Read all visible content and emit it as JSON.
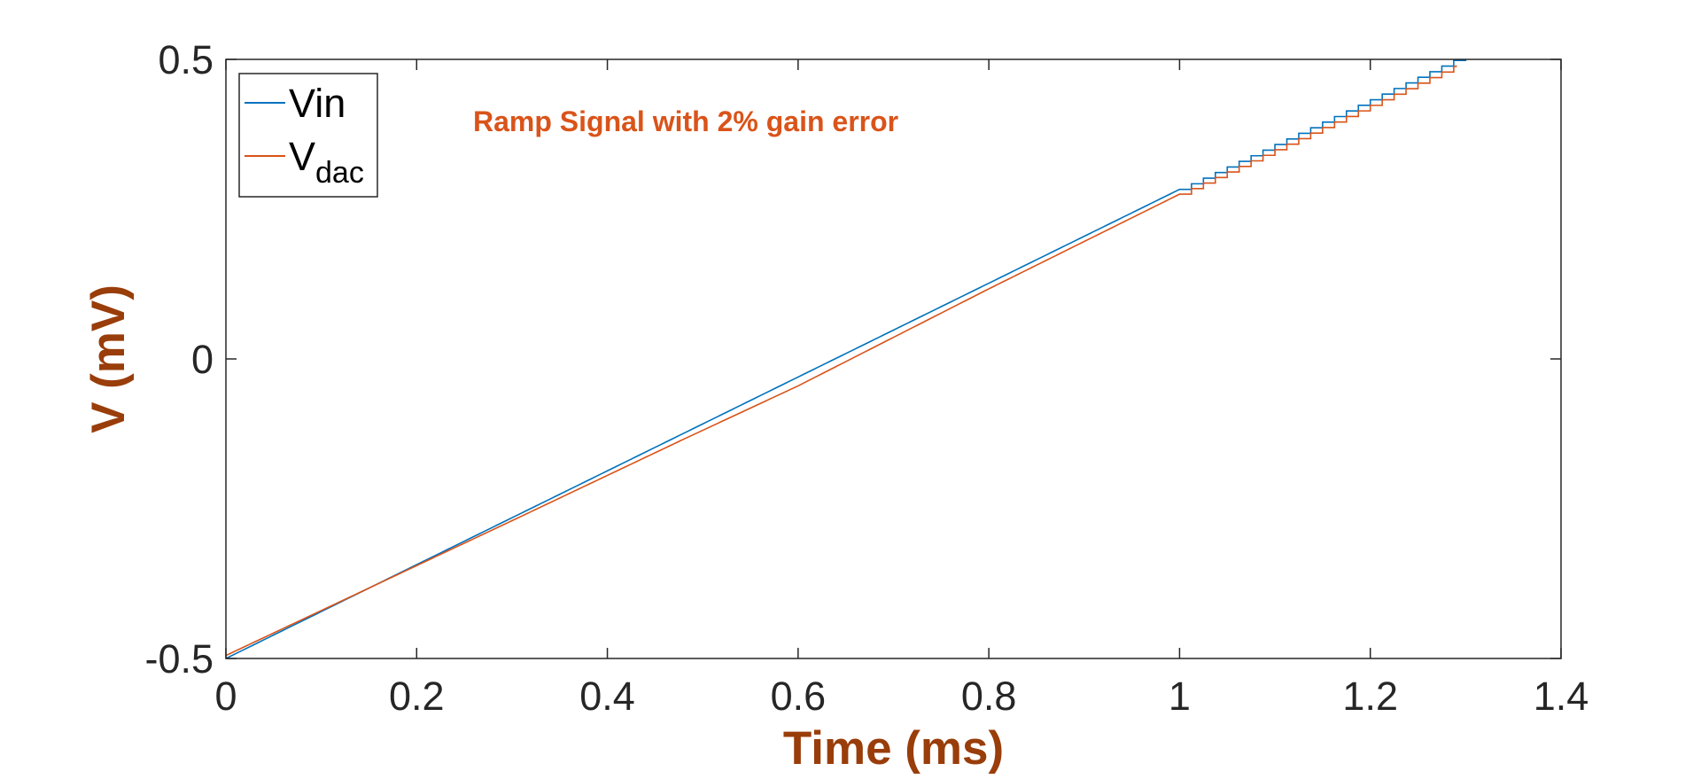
{
  "chart_data": {
    "type": "line",
    "title": "",
    "xlabel": "Time (ms)",
    "ylabel": "V (mV)",
    "xlim": [
      0,
      1.4
    ],
    "ylim": [
      -0.5,
      0.5
    ],
    "xticks": [
      0,
      0.2,
      0.4,
      0.6,
      0.8,
      1,
      1.2,
      1.4
    ],
    "xtick_labels": [
      "0",
      "0.2",
      "0.4",
      "0.6",
      "0.8",
      "1",
      "1.2",
      "1.4"
    ],
    "yticks": [
      -0.5,
      0,
      0.5
    ],
    "ytick_labels": [
      "-0.5",
      "0",
      "0.5"
    ],
    "grid": false,
    "legend_position": "top-left",
    "annotation": "Ramp Signal with 2% gain error",
    "colors": {
      "axis_label": "#993d0a",
      "annotation": "#d9541a",
      "axes": "#262626"
    },
    "series": [
      {
        "name": "Vin",
        "legend_main": "Vin",
        "legend_sub": "",
        "color": "#0072bd",
        "x": [
          0,
          1.0,
          1.29,
          1.3
        ],
        "y": [
          -0.5,
          0.283,
          0.5,
          0.5
        ],
        "steps_from": 1.0,
        "step_width": 0.0125
      },
      {
        "name": "Vdac",
        "legend_main": "V",
        "legend_sub": "dac",
        "color": "#d95319",
        "x": [
          0,
          0.3,
          0.48,
          0.6,
          0.8,
          1.0,
          1.29
        ],
        "y": [
          -0.495,
          -0.27,
          -0.134,
          -0.045,
          0.117,
          0.275,
          0.49
        ],
        "steps_from": 1.0,
        "step_width": 0.0125
      }
    ]
  }
}
